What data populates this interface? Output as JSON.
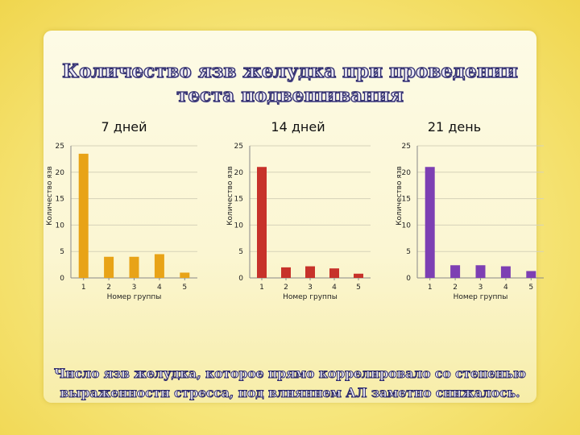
{
  "heading": "Количество язв желудка при проведении теста подвешивания",
  "conclusion": "Число язв желудка, которое прямо коррелировало со степенью выраженности стресса, под влиянием АЛ заметно снижалось.",
  "chart_data": [
    {
      "type": "bar",
      "title": "7 дней",
      "categories": [
        "1",
        "2",
        "3",
        "4",
        "5"
      ],
      "values": [
        23.5,
        4,
        4,
        4.5,
        1
      ],
      "xlabel": "Номер группы",
      "ylabel": "Количество язв",
      "ylim": [
        0,
        25
      ],
      "yticks": [
        "0",
        "5",
        "10",
        "15",
        "20",
        "25"
      ],
      "color": "#e8a317",
      "grid": true
    },
    {
      "type": "bar",
      "title": "14 дней",
      "categories": [
        "1",
        "2",
        "3",
        "4",
        "5"
      ],
      "values": [
        21,
        2,
        2.2,
        1.8,
        0.8
      ],
      "xlabel": "Номер группы",
      "ylabel": "Количество язв",
      "ylim": [
        0,
        25
      ],
      "yticks": [
        "0",
        "5",
        "10",
        "15",
        "20",
        "25"
      ],
      "color": "#c7322a",
      "grid": true
    },
    {
      "type": "bar",
      "title": "21 день",
      "categories": [
        "1",
        "2",
        "3",
        "4",
        "5"
      ],
      "values": [
        21,
        2.4,
        2.4,
        2.2,
        1.3
      ],
      "xlabel": "Номер группы",
      "ylabel": "Количество язв",
      "ylim": [
        0,
        25
      ],
      "yticks": [
        "0",
        "5",
        "10",
        "15",
        "20",
        "25"
      ],
      "color": "#7d3fb3",
      "grid": true
    }
  ]
}
